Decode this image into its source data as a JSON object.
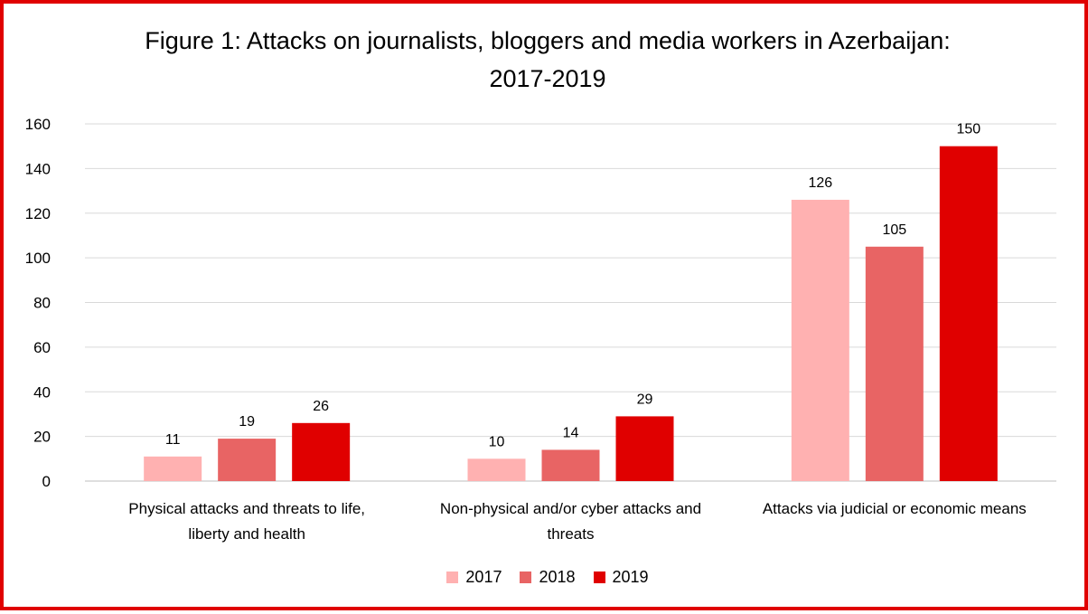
{
  "chart_data": {
    "type": "bar",
    "title_lines": [
      "Figure 1: Attacks on journalists, bloggers and media workers in Azerbaijan:",
      "2017-2019"
    ],
    "categories": [
      [
        "Physical attacks and threats to life,",
        "liberty and health"
      ],
      [
        "Non-physical and/or cyber attacks and",
        "threats"
      ],
      [
        "Attacks via judicial or economic means"
      ]
    ],
    "series": [
      {
        "name": "2017",
        "color": "#ffb1b1",
        "values": [
          11,
          10,
          126
        ]
      },
      {
        "name": "2018",
        "color": "#e86464",
        "values": [
          19,
          14,
          105
        ]
      },
      {
        "name": "2019",
        "color": "#e00000",
        "values": [
          26,
          29,
          150
        ]
      }
    ],
    "ylim": [
      0,
      160
    ],
    "yticks": [
      "0",
      "20",
      "40",
      "60",
      "80",
      "100",
      "120",
      "140",
      "160"
    ],
    "grid": true,
    "legend_position": "bottom",
    "data_labels": true
  }
}
